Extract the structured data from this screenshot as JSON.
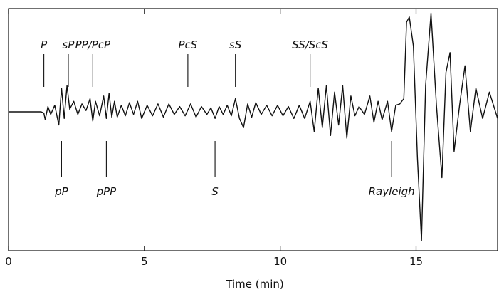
{
  "chart_data": {
    "type": "line",
    "title": "",
    "xlabel": "Time (min)",
    "ylabel": "",
    "xlim": [
      0,
      18
    ],
    "xticks": [
      0,
      5,
      10,
      15
    ],
    "grid": false,
    "series": [
      {
        "values": [
          [
            0,
            0
          ],
          [
            1.2,
            0
          ],
          [
            1.3,
            -0.01
          ],
          [
            1.35,
            -0.06
          ],
          [
            1.45,
            0.04
          ],
          [
            1.55,
            -0.02
          ],
          [
            1.7,
            0.05
          ],
          [
            1.85,
            -0.1
          ],
          [
            1.95,
            0.18
          ],
          [
            2.05,
            -0.05
          ],
          [
            2.15,
            0.2
          ],
          [
            2.25,
            0.02
          ],
          [
            2.4,
            0.08
          ],
          [
            2.55,
            -0.02
          ],
          [
            2.7,
            0.06
          ],
          [
            2.85,
            0.01
          ],
          [
            3.0,
            0.1
          ],
          [
            3.1,
            -0.07
          ],
          [
            3.2,
            0.08
          ],
          [
            3.35,
            -0.03
          ],
          [
            3.5,
            0.12
          ],
          [
            3.6,
            -0.05
          ],
          [
            3.7,
            0.14
          ],
          [
            3.8,
            -0.04
          ],
          [
            3.9,
            0.08
          ],
          [
            4.0,
            -0.04
          ],
          [
            4.15,
            0.05
          ],
          [
            4.3,
            -0.03
          ],
          [
            4.45,
            0.07
          ],
          [
            4.6,
            -0.02
          ],
          [
            4.75,
            0.08
          ],
          [
            4.9,
            -0.05
          ],
          [
            5.1,
            0.05
          ],
          [
            5.3,
            -0.03
          ],
          [
            5.5,
            0.06
          ],
          [
            5.7,
            -0.04
          ],
          [
            5.9,
            0.06
          ],
          [
            6.1,
            -0.02
          ],
          [
            6.3,
            0.04
          ],
          [
            6.5,
            -0.03
          ],
          [
            6.7,
            0.06
          ],
          [
            6.9,
            -0.04
          ],
          [
            7.1,
            0.04
          ],
          [
            7.3,
            -0.02
          ],
          [
            7.45,
            0.03
          ],
          [
            7.6,
            -0.05
          ],
          [
            7.75,
            0.04
          ],
          [
            7.9,
            -0.02
          ],
          [
            8.05,
            0.05
          ],
          [
            8.2,
            -0.03
          ],
          [
            8.35,
            0.1
          ],
          [
            8.5,
            -0.05
          ],
          [
            8.65,
            -0.12
          ],
          [
            8.8,
            0.06
          ],
          [
            8.95,
            -0.04
          ],
          [
            9.1,
            0.07
          ],
          [
            9.3,
            -0.02
          ],
          [
            9.5,
            0.05
          ],
          [
            9.7,
            -0.03
          ],
          [
            9.9,
            0.05
          ],
          [
            10.1,
            -0.03
          ],
          [
            10.3,
            0.04
          ],
          [
            10.5,
            -0.05
          ],
          [
            10.7,
            0.05
          ],
          [
            10.9,
            -0.05
          ],
          [
            11.1,
            0.08
          ],
          [
            11.25,
            -0.15
          ],
          [
            11.4,
            0.18
          ],
          [
            11.55,
            -0.12
          ],
          [
            11.7,
            0.2
          ],
          [
            11.85,
            -0.18
          ],
          [
            12.0,
            0.15
          ],
          [
            12.15,
            -0.1
          ],
          [
            12.3,
            0.2
          ],
          [
            12.45,
            -0.2
          ],
          [
            12.6,
            0.12
          ],
          [
            12.75,
            -0.03
          ],
          [
            12.9,
            0.04
          ],
          [
            13.1,
            -0.02
          ],
          [
            13.3,
            0.12
          ],
          [
            13.45,
            -0.08
          ],
          [
            13.6,
            0.08
          ],
          [
            13.75,
            -0.06
          ],
          [
            13.95,
            0.08
          ],
          [
            14.1,
            -0.15
          ],
          [
            14.25,
            0.05
          ],
          [
            14.4,
            0.06
          ],
          [
            14.55,
            0.1
          ],
          [
            14.65,
            0.68
          ],
          [
            14.75,
            0.72
          ],
          [
            14.9,
            0.5
          ],
          [
            15.05,
            -0.35
          ],
          [
            15.2,
            -0.98
          ],
          [
            15.35,
            0.2
          ],
          [
            15.55,
            0.75
          ],
          [
            15.75,
            0.05
          ],
          [
            15.95,
            -0.5
          ],
          [
            16.1,
            0.3
          ],
          [
            16.25,
            0.45
          ],
          [
            16.4,
            -0.3
          ],
          [
            16.6,
            0.05
          ],
          [
            16.8,
            0.35
          ],
          [
            17.0,
            -0.15
          ],
          [
            17.2,
            0.18
          ],
          [
            17.45,
            -0.05
          ],
          [
            17.7,
            0.15
          ],
          [
            18.0,
            -0.05
          ]
        ]
      }
    ],
    "annotations": [
      {
        "label": "P",
        "x": 1.3,
        "side": "above"
      },
      {
        "label": "sP",
        "x": 2.2,
        "side": "above"
      },
      {
        "label": "PP/PcP",
        "x": 3.1,
        "side": "above"
      },
      {
        "label": "PcS",
        "x": 6.6,
        "side": "above"
      },
      {
        "label": "sS",
        "x": 8.35,
        "side": "above"
      },
      {
        "label": "SS/ScS",
        "x": 11.1,
        "side": "above"
      },
      {
        "label": "pP",
        "x": 1.95,
        "side": "below"
      },
      {
        "label": "pPP",
        "x": 3.6,
        "side": "below"
      },
      {
        "label": "S",
        "x": 7.6,
        "side": "below"
      },
      {
        "label": "Rayleigh",
        "x": 14.1,
        "side": "below"
      }
    ]
  }
}
